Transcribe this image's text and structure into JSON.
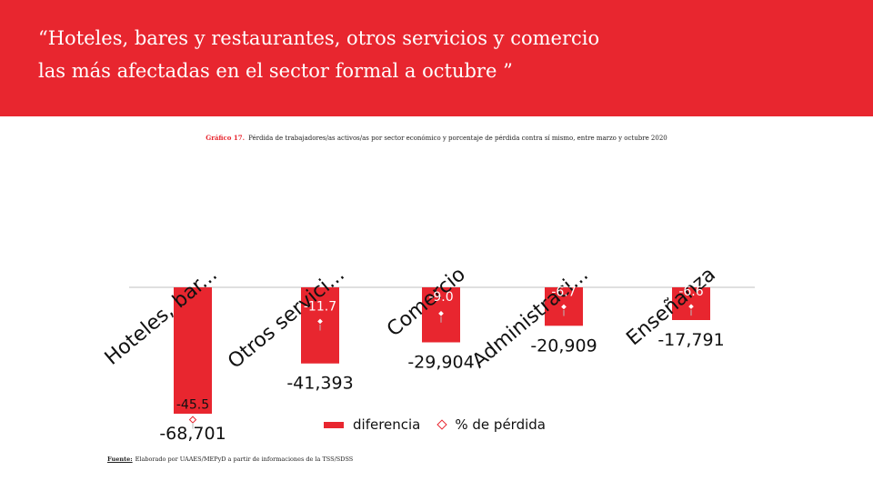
{
  "header": {
    "title_line1": "“Hoteles, bares y restaurantes, otros servicios y comercio",
    "title_line2": "las más afectadas en el sector formal  a octubre ”"
  },
  "subtitle": {
    "lead": "Gráfico 17.",
    "text": "Pérdida de trabajadores/as activos/as por sector económico y porcentaje de pérdida contra sí mismo, entre marzo y octubre 2020"
  },
  "source": {
    "lead": "Fuente:",
    "text": "Elaborado por UAAES/MEPyD a partir de informaciones de la TSS/SDSS"
  },
  "legend": {
    "bar_label": "diferencia",
    "marker_label": "% de pérdida"
  },
  "colors": {
    "accent": "#e8262f",
    "text": "#111111"
  },
  "chart_data": {
    "type": "bar",
    "categories": [
      "Hoteles, bar...",
      "Otros servici...",
      "Comercio",
      "Administraci...",
      "Enseñanza"
    ],
    "series": [
      {
        "name": "diferencia",
        "values": [
          -68701,
          -41393,
          -29904,
          -20909,
          -17791
        ],
        "value_labels": [
          "-68,701",
          "-41,393",
          "-29,904",
          "-20,909",
          "-17,791"
        ]
      },
      {
        "name": "% de pérdida",
        "values": [
          -45.5,
          -11.7,
          -9.0,
          -6.7,
          -6.6
        ],
        "value_labels": [
          "-45.5",
          "-11.7",
          "-9.0",
          "-6.7",
          "-6.6"
        ]
      }
    ],
    "ylim": [
      -75000,
      0
    ],
    "legend_position": "bottom",
    "grid": false
  }
}
